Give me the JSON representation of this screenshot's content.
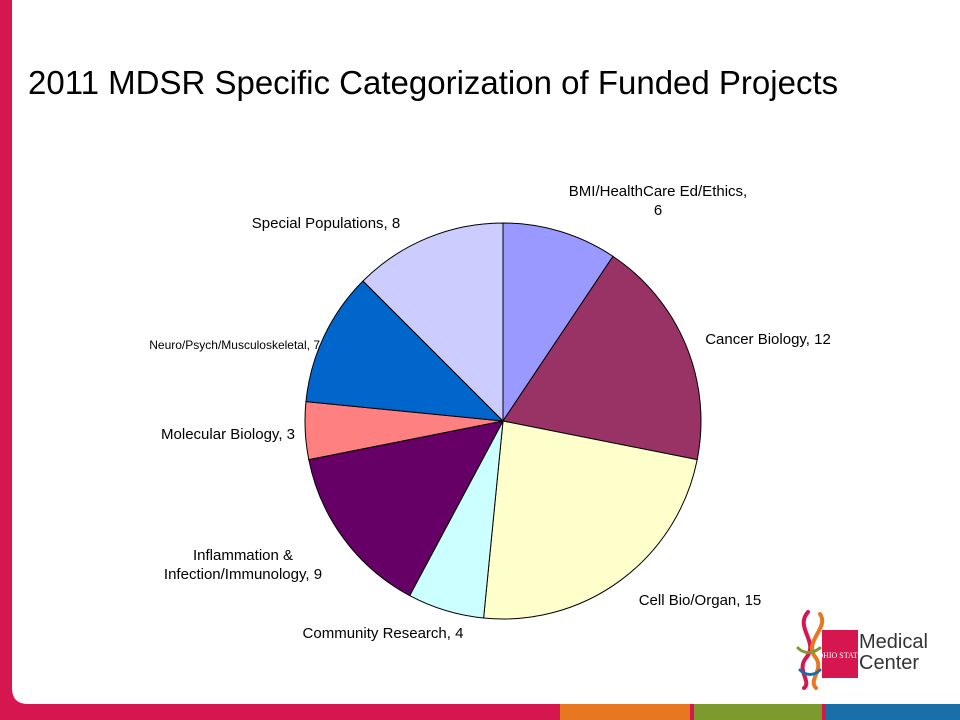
{
  "slide": {
    "title": "2011 MDSR Specific Categorization of Funded Projects",
    "accent_color": "#D6174F",
    "footer_bar_colors": [
      "#D6174F",
      "#E87722",
      "#7C9A2E",
      "#1A6FA8"
    ]
  },
  "logo": {
    "line1": "Medical",
    "line2": "Center",
    "badge_text": "OHIO STATE",
    "icon": "dna-helix-icon"
  },
  "chart_data": {
    "type": "pie",
    "title": "2011 MDSR Specific Categorization of Funded Projects",
    "start": "12 o'clock, clockwise",
    "slices": [
      {
        "label": "BMI/HealthCare Ed/Ethics",
        "value": 6,
        "color": "#9999FF",
        "label_text": [
          "BMI/HealthCare Ed/Ethics,",
          "6"
        ]
      },
      {
        "label": "Cancer Biology",
        "value": 12,
        "color": "#993366",
        "label_text": [
          "Cancer Biology, 12"
        ]
      },
      {
        "label": "Cell Bio/Organ",
        "value": 15,
        "color": "#FFFFCC",
        "label_text": [
          "Cell Bio/Organ, 15"
        ]
      },
      {
        "label": "Community Research",
        "value": 4,
        "color": "#CCFFFF",
        "label_text": [
          "Community Research, 4"
        ]
      },
      {
        "label": "Inflammation & Infection/Immunology",
        "value": 9,
        "color": "#660066",
        "label_text": [
          "Inflammation &",
          "Infection/Immunology, 9"
        ]
      },
      {
        "label": "Molecular Biology",
        "value": 3,
        "color": "#FF8080",
        "label_text": [
          "Molecular Biology, 3"
        ]
      },
      {
        "label": "Neuro/Psych/Musculoskeletal",
        "value": 7,
        "color": "#0066CC",
        "label_text": [
          "Neuro/Psych/Musculoskeletal, 7"
        ]
      },
      {
        "label": "Special Populations",
        "value": 8,
        "color": "#CCCCFF",
        "label_text": [
          "Special Populations, 8"
        ]
      }
    ]
  }
}
